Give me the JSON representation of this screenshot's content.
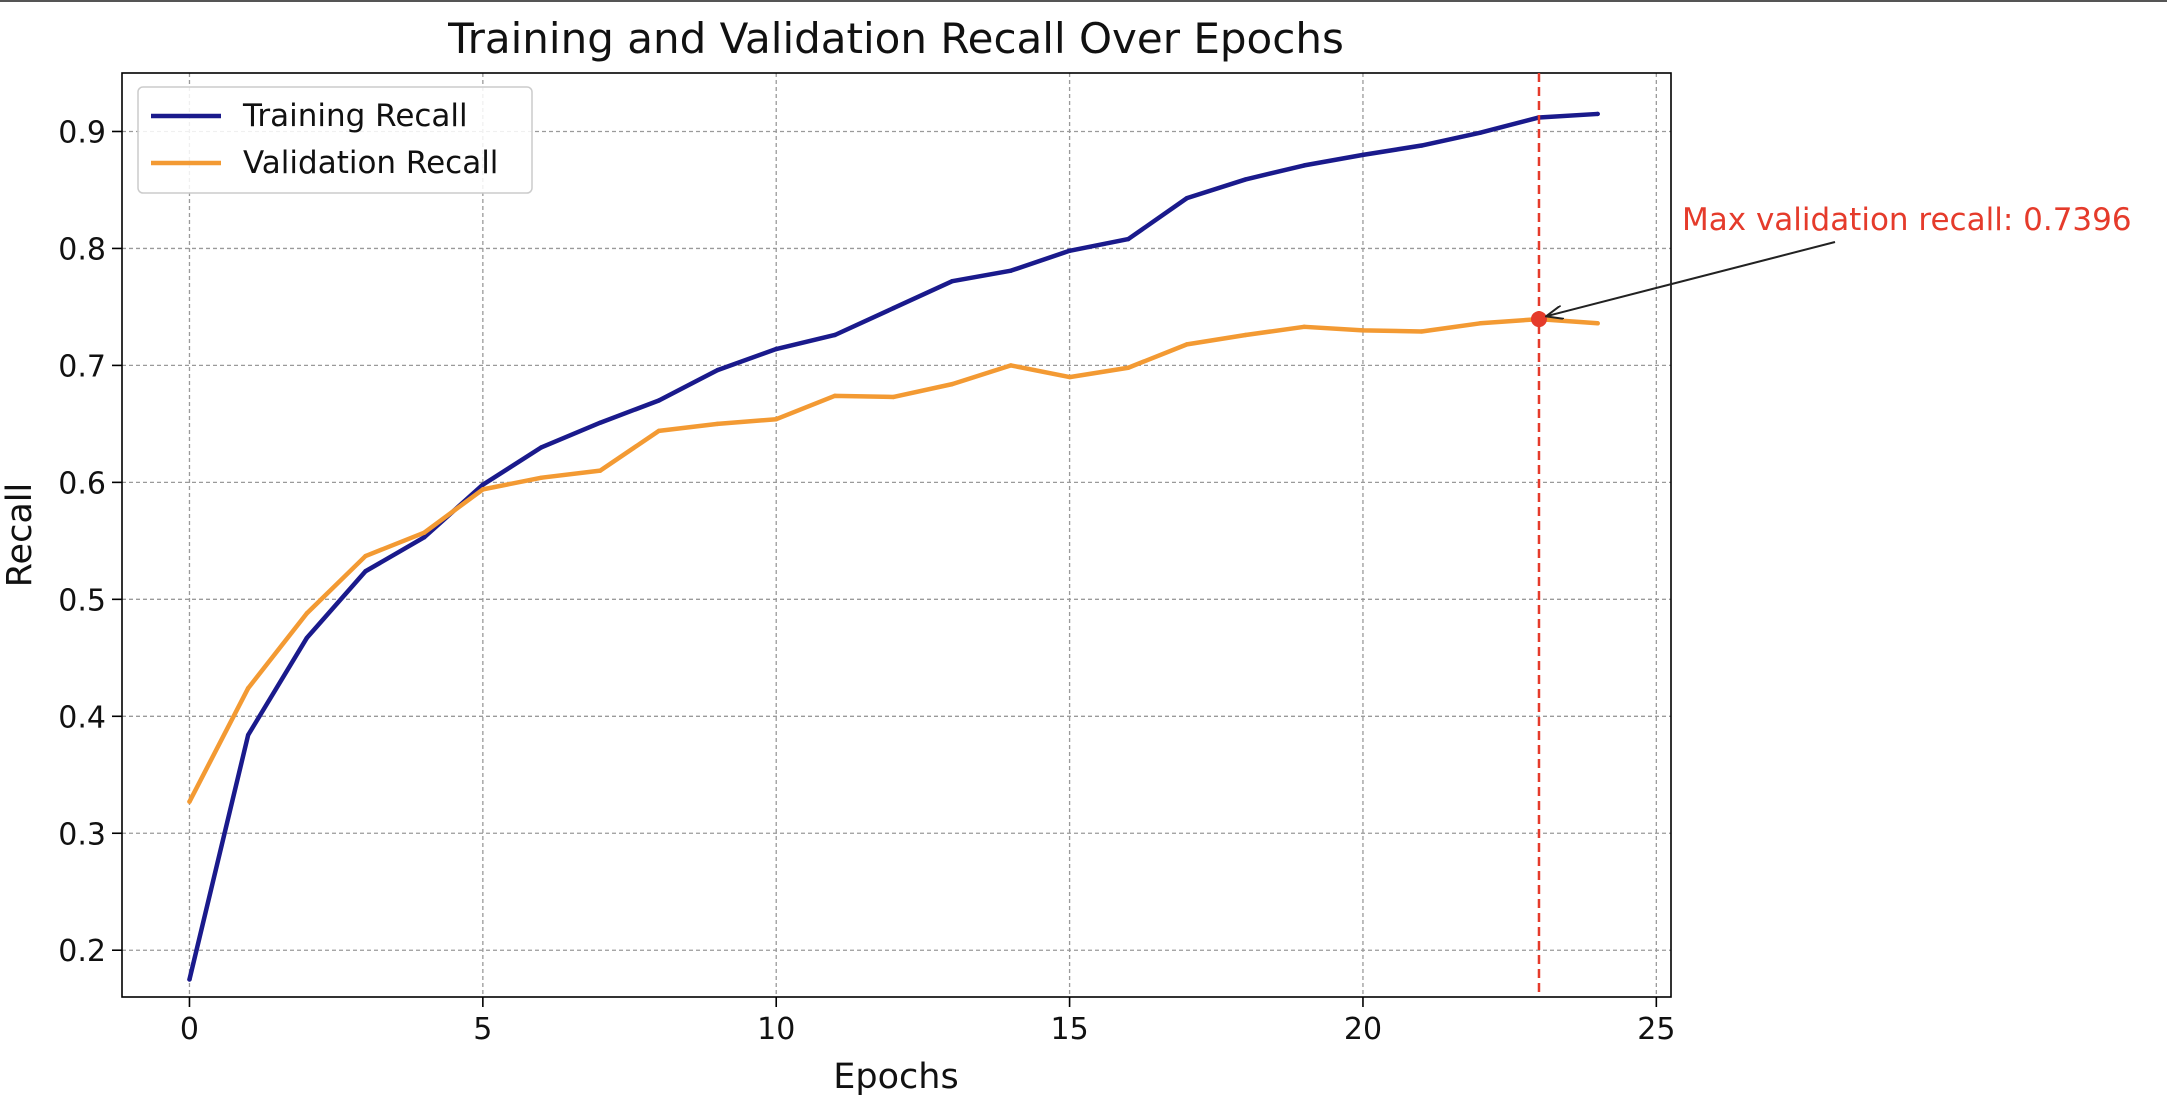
{
  "chart_data": {
    "type": "line",
    "title": "Training and Validation Recall Over Epochs",
    "xlabel": "Epochs",
    "ylabel": "Recall",
    "xlim": [
      -1.15,
      25.25
    ],
    "ylim": [
      0.16,
      0.95
    ],
    "xticks": [
      0,
      5,
      10,
      15,
      20,
      25
    ],
    "yticks": [
      0.2,
      0.3,
      0.4,
      0.5,
      0.6,
      0.7,
      0.8,
      0.9
    ],
    "xtick_labels": [
      "0",
      "5",
      "10",
      "15",
      "20",
      "25"
    ],
    "ytick_labels": [
      "0.2",
      "0.3",
      "0.4",
      "0.5",
      "0.6",
      "0.7",
      "0.8",
      "0.9"
    ],
    "grid": true,
    "legend_position": "top-left",
    "x": [
      0,
      1,
      2,
      3,
      4,
      5,
      6,
      7,
      8,
      9,
      10,
      11,
      12,
      13,
      14,
      15,
      16,
      17,
      18,
      19,
      20,
      21,
      22,
      23,
      24
    ],
    "series": [
      {
        "name": "Training Recall",
        "color": "#1a1a8c",
        "values": [
          0.175,
          0.384,
          0.467,
          0.524,
          0.553,
          0.598,
          0.63,
          0.651,
          0.67,
          0.696,
          0.714,
          0.726,
          0.749,
          0.772,
          0.781,
          0.798,
          0.808,
          0.843,
          0.859,
          0.871,
          0.88,
          0.888,
          0.899,
          0.912,
          0.915
        ]
      },
      {
        "name": "Validation Recall",
        "color": "#f39a33",
        "values": [
          0.327,
          0.424,
          0.488,
          0.537,
          0.557,
          0.594,
          0.604,
          0.61,
          0.644,
          0.65,
          0.654,
          0.674,
          0.673,
          0.684,
          0.7,
          0.69,
          0.698,
          0.718,
          0.726,
          0.733,
          0.73,
          0.729,
          0.736,
          0.7396,
          0.736
        ]
      }
    ],
    "max_marker": {
      "x": 23,
      "y": 0.7396,
      "color": "#e53b2b"
    },
    "vline": {
      "x": 23,
      "color": "#e53b2b"
    },
    "annotation": {
      "text": "Max validation recall: 0.7396",
      "color": "#e53b2b"
    }
  }
}
